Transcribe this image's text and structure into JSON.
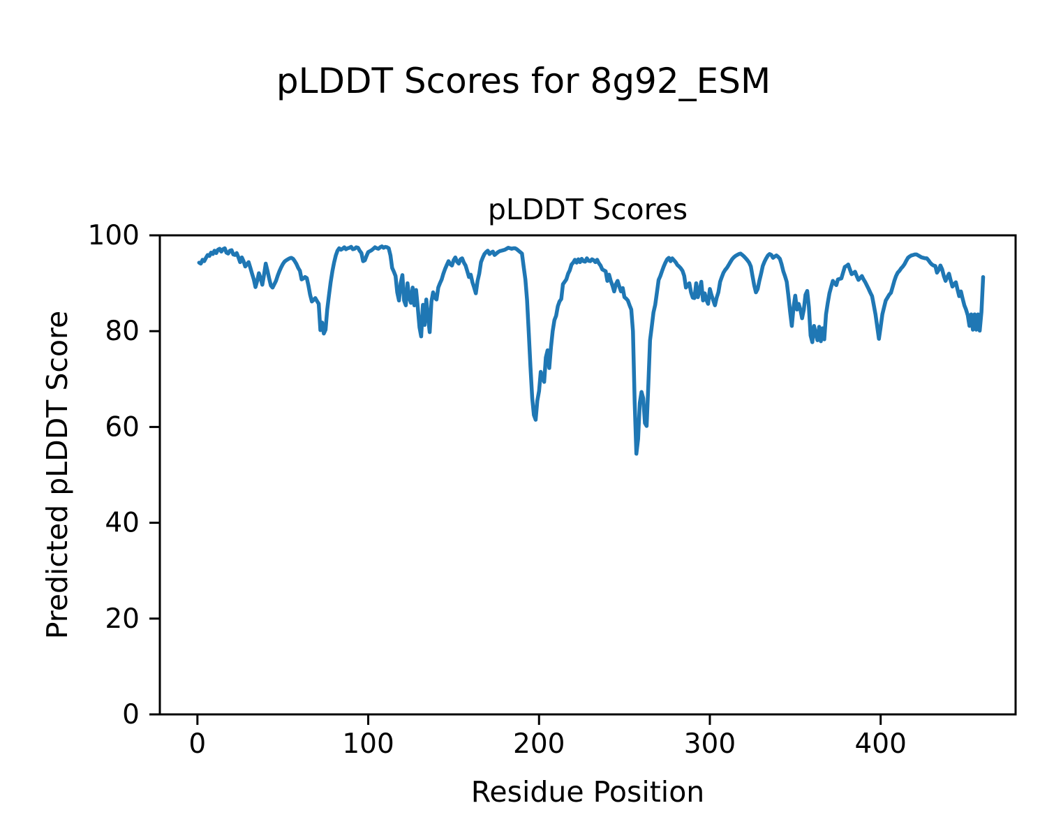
{
  "figure": {
    "suptitle": "pLDDT Scores for 8g92_ESM",
    "background_color": "#ffffff",
    "text_color": "#000000"
  },
  "chart_data": {
    "type": "line",
    "title": "pLDDT Scores",
    "xlabel": "Residue Position",
    "ylabel": "Predicted pLDDT Score",
    "xlim": [
      -22,
      479
    ],
    "ylim": [
      0,
      100
    ],
    "x_ticks": [
      0,
      100,
      200,
      300,
      400
    ],
    "y_ticks": [
      0,
      20,
      40,
      60,
      80,
      100
    ],
    "grid": false,
    "legend": "none",
    "line_color": "#1f77b4",
    "axis_color": "#000000",
    "series": [
      {
        "name": "pLDDT",
        "x_start": 1,
        "x_step": 1,
        "values": [
          94.3,
          94.1,
          94.9,
          94.6,
          95.3,
          95.9,
          95.7,
          96.4,
          96.1,
          96.8,
          96.3,
          97.0,
          97.2,
          96.6,
          97.1,
          97.3,
          96.4,
          96.2,
          96.8,
          96.9,
          96.0,
          95.9,
          96.3,
          95.4,
          94.4,
          95.4,
          94.6,
          93.5,
          94.0,
          94.4,
          93.2,
          92.0,
          90.8,
          89.2,
          90.5,
          92.1,
          91.0,
          89.7,
          91.8,
          94.1,
          92.6,
          91.0,
          89.5,
          89.1,
          89.8,
          90.5,
          91.6,
          92.5,
          93.3,
          94.0,
          94.5,
          94.8,
          95.0,
          95.2,
          95.3,
          95.1,
          94.6,
          94.0,
          93.2,
          92.6,
          90.8,
          91.0,
          91.3,
          91.1,
          89.5,
          87.6,
          86.2,
          86.5,
          86.9,
          86.3,
          85.7,
          80.2,
          81.8,
          79.5,
          80.3,
          84.5,
          87.5,
          90.2,
          92.5,
          94.3,
          95.8,
          96.8,
          97.3,
          97.0,
          97.2,
          97.5,
          97.1,
          97.3,
          97.4,
          97.6,
          97.1,
          97.2,
          97.5,
          97.4,
          96.8,
          96.3,
          94.6,
          94.8,
          95.7,
          96.5,
          96.7,
          96.9,
          97.2,
          97.5,
          97.3,
          97.2,
          97.5,
          97.7,
          97.4,
          97.6,
          97.5,
          97.3,
          95.8,
          93.2,
          92.4,
          91.5,
          88.1,
          86.4,
          90.0,
          91.7,
          86.4,
          85.4,
          90.0,
          87.0,
          85.9,
          89.1,
          85.4,
          88.6,
          85.0,
          80.8,
          78.9,
          85.5,
          81.3,
          86.6,
          83.0,
          79.8,
          86.2,
          88.1,
          87.0,
          86.6,
          89.1,
          90.0,
          90.8,
          92.0,
          93.0,
          93.8,
          94.6,
          94.0,
          93.7,
          94.8,
          95.4,
          94.5,
          94.1,
          95.0,
          95.2,
          94.3,
          93.7,
          92.5,
          91.3,
          91.8,
          90.2,
          89.1,
          87.9,
          90.5,
          92.0,
          94.4,
          95.3,
          96.1,
          96.5,
          96.8,
          96.1,
          96.4,
          96.6,
          95.9,
          96.2,
          96.5,
          96.7,
          96.8,
          96.9,
          97.0,
          97.2,
          97.4,
          97.3,
          97.2,
          97.3,
          97.3,
          97.1,
          96.8,
          96.5,
          96.2,
          93.5,
          90.8,
          86.5,
          79.5,
          72.5,
          66.0,
          62.5,
          61.5,
          65.5,
          67.5,
          71.5,
          70.2,
          69.4,
          74.5,
          76.0,
          72.3,
          76.7,
          80.0,
          82.3,
          83.2,
          85.2,
          86.2,
          86.7,
          89.8,
          90.3,
          90.8,
          92.0,
          92.7,
          93.9,
          94.3,
          94.9,
          94.3,
          95.0,
          94.4,
          95.1,
          94.6,
          94.5,
          95.2,
          94.7,
          94.6,
          95.0,
          94.8,
          94.4,
          94.9,
          94.2,
          93.7,
          92.9,
          92.7,
          92.5,
          90.5,
          91.8,
          90.5,
          89.5,
          88.3,
          89.8,
          90.5,
          89.3,
          88.3,
          89.0,
          87.1,
          86.8,
          86.4,
          85.4,
          84.5,
          80.0,
          65.0,
          54.4,
          57.5,
          65.0,
          67.3,
          66.0,
          60.8,
          60.2,
          69.0,
          78.1,
          81.0,
          83.9,
          85.5,
          88.0,
          90.7,
          91.5,
          92.5,
          93.5,
          94.3,
          95.0,
          95.3,
          94.6,
          95.2,
          94.8,
          94.4,
          93.8,
          93.5,
          93.1,
          92.6,
          91.5,
          89.1,
          89.6,
          90.0,
          88.1,
          87.0,
          86.9,
          90.0,
          87.1,
          88.5,
          90.3,
          86.4,
          87.9,
          86.5,
          85.7,
          88.8,
          87.5,
          86.4,
          85.4,
          87.0,
          88.1,
          90.3,
          91.3,
          92.2,
          92.8,
          93.2,
          93.8,
          94.4,
          95.0,
          95.4,
          95.7,
          95.9,
          96.1,
          96.2,
          95.9,
          95.6,
          95.2,
          94.8,
          94.3,
          93.5,
          91.5,
          89.5,
          88.1,
          88.8,
          90.5,
          92.0,
          93.6,
          94.5,
          95.2,
          95.8,
          96.1,
          95.9,
          95.3,
          95.6,
          95.8,
          95.5,
          95.1,
          94.0,
          92.5,
          91.5,
          90.3,
          87.4,
          84.0,
          81.1,
          85.0,
          87.4,
          84.5,
          85.7,
          84.5,
          82.7,
          84.5,
          87.6,
          88.4,
          85.0,
          79.1,
          77.7,
          81.1,
          79.5,
          78.1,
          80.9,
          77.9,
          80.6,
          78.3,
          83.5,
          85.8,
          87.9,
          89.2,
          90.5,
          90.0,
          89.6,
          90.8,
          90.9,
          91.0,
          92.2,
          93.4,
          93.6,
          93.9,
          92.9,
          91.9,
          92.1,
          92.4,
          91.5,
          90.7,
          91.1,
          91.5,
          90.8,
          90.2,
          89.5,
          88.8,
          88.0,
          87.3,
          85.4,
          83.5,
          80.9,
          78.4,
          80.9,
          83.5,
          85.0,
          86.4,
          87.0,
          87.6,
          88.0,
          89.2,
          90.5,
          91.5,
          92.2,
          92.6,
          93.1,
          93.5,
          94.0,
          94.7,
          95.3,
          95.6,
          95.8,
          95.9,
          96.0,
          96.0,
          95.8,
          95.6,
          95.4,
          95.3,
          95.2,
          95.2,
          94.8,
          94.3,
          93.9,
          93.7,
          93.6,
          92.2,
          92.8,
          93.7,
          92.9,
          91.5,
          90.5,
          91.3,
          92.0,
          90.6,
          89.3,
          89.8,
          90.2,
          88.7,
          87.3,
          88.3,
          86.8,
          85.4,
          84.5,
          83.3,
          81.1,
          83.5,
          80.3,
          83.5,
          80.3,
          83.5,
          80.1,
          84.0,
          91.3
        ]
      }
    ]
  }
}
